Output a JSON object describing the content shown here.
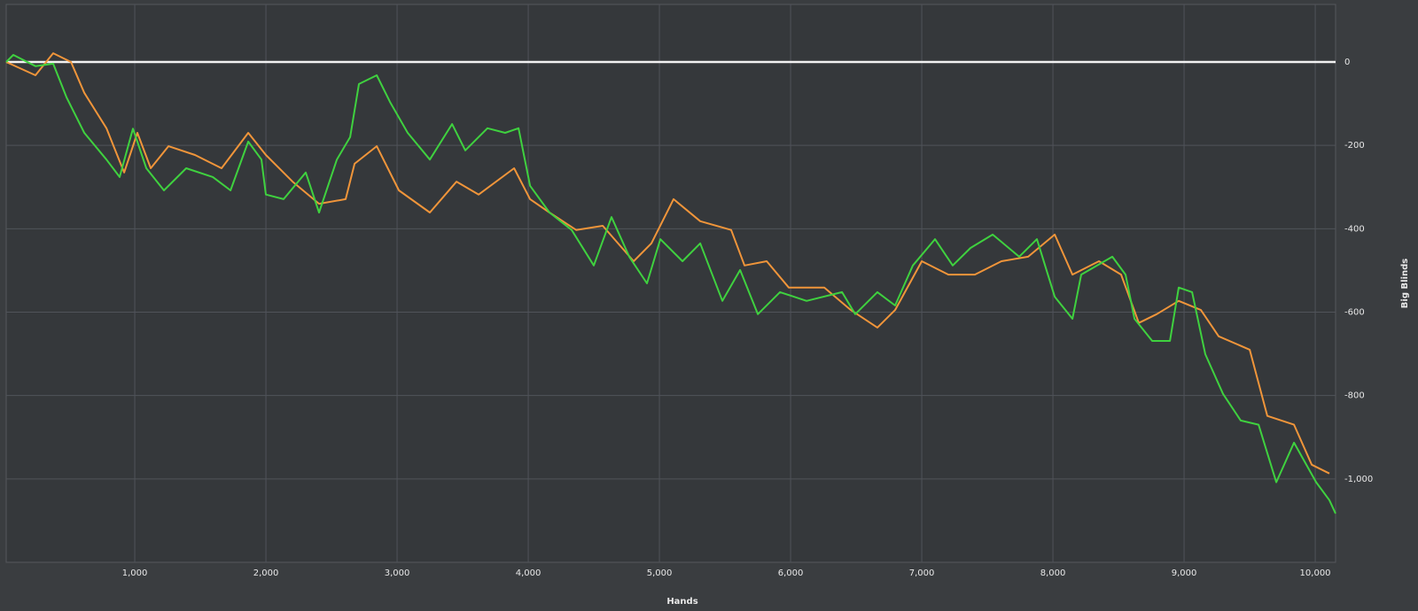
{
  "chart_data": {
    "type": "line",
    "x_label": "Hands",
    "y_label": "Big Blinds",
    "xlim": [
      20,
      10155
    ],
    "ylim": [
      -1200,
      138
    ],
    "xticks": [
      {
        "value": 1000,
        "label": "1,000"
      },
      {
        "value": 2000,
        "label": "2,000"
      },
      {
        "value": 3000,
        "label": "3,000"
      },
      {
        "value": 4000,
        "label": "4,000"
      },
      {
        "value": 5000,
        "label": "5,000"
      },
      {
        "value": 6000,
        "label": "6,000"
      },
      {
        "value": 7000,
        "label": "7,000"
      },
      {
        "value": 8000,
        "label": "8,000"
      },
      {
        "value": 9000,
        "label": "9,000"
      },
      {
        "value": 10000,
        "label": "10,000"
      }
    ],
    "yticks": [
      0,
      -200,
      -400,
      -600,
      -800,
      {
        "value": -1000,
        "label": "-1,000"
      }
    ],
    "grid": true,
    "series": [
      {
        "color": "#3fd13f",
        "x": [
          20,
          74,
          243,
          378,
          480,
          615,
          784,
          885,
          986,
          1088,
          1223,
          1392,
          1595,
          1730,
          1865,
          1966,
          2000,
          2135,
          2304,
          2405,
          2541,
          2642,
          2709,
          2845,
          2946,
          3081,
          3250,
          3419,
          3520,
          3689,
          3824,
          3926,
          4014,
          4162,
          4331,
          4500,
          4635,
          4770,
          4905,
          5007,
          5176,
          5311,
          5480,
          5615,
          5750,
          5919,
          6122,
          6392,
          6493,
          6662,
          6797,
          6932,
          7101,
          7236,
          7372,
          7541,
          7743,
          7878,
          8014,
          8149,
          8216,
          8453,
          8554,
          8622,
          8757,
          8892,
          8959,
          9061,
          9162,
          9297,
          9432,
          9568,
          9703,
          9838,
          10007,
          10108,
          10155
        ],
        "values": [
          0,
          17,
          -10,
          -4,
          -85,
          -170,
          -234,
          -276,
          -160,
          -255,
          -308,
          -255,
          -276,
          -308,
          -191,
          -234,
          -318,
          -329,
          -265,
          -361,
          -234,
          -180,
          -53,
          -32,
          -96,
          -170,
          -234,
          -149,
          -212,
          -159,
          -170,
          -159,
          -297,
          -361,
          -403,
          -488,
          -372,
          -467,
          -531,
          -425,
          -478,
          -435,
          -573,
          -499,
          -605,
          -552,
          -573,
          -552,
          -605,
          -552,
          -584,
          -488,
          -425,
          -488,
          -446,
          -414,
          -467,
          -425,
          -563,
          -616,
          -510,
          -467,
          -510,
          -616,
          -669,
          -669,
          -541,
          -552,
          -701,
          -796,
          -860,
          -870,
          -1008,
          -913,
          -1008,
          -1051,
          -1083
        ]
      },
      {
        "color": "#f0953a",
        "x": [
          20,
          243,
          378,
          514,
          615,
          784,
          919,
          1020,
          1122,
          1257,
          1459,
          1662,
          1865,
          2000,
          2203,
          2405,
          2608,
          2676,
          2845,
          3014,
          3250,
          3453,
          3622,
          3892,
          4014,
          4162,
          4365,
          4568,
          4804,
          4939,
          5108,
          5311,
          5547,
          5649,
          5818,
          5986,
          6257,
          6459,
          6662,
          6797,
          7000,
          7203,
          7405,
          7608,
          7811,
          8014,
          8149,
          8351,
          8520,
          8655,
          8791,
          8959,
          9128,
          9264,
          9500,
          9635,
          9838,
          9973,
          10108
        ],
        "values": [
          0,
          -32,
          21,
          0,
          -74,
          -159,
          -265,
          -170,
          -255,
          -202,
          -223,
          -255,
          -170,
          -223,
          -287,
          -340,
          -329,
          -244,
          -202,
          -308,
          -361,
          -287,
          -318,
          -255,
          -329,
          -361,
          -403,
          -393,
          -478,
          -435,
          -329,
          -382,
          -403,
          -488,
          -478,
          -541,
          -541,
          -595,
          -637,
          -595,
          -478,
          -510,
          -510,
          -478,
          -467,
          -414,
          -510,
          -478,
          -510,
          -626,
          -605,
          -573,
          -595,
          -658,
          -690,
          -849,
          -870,
          -966,
          -987
        ]
      }
    ]
  }
}
